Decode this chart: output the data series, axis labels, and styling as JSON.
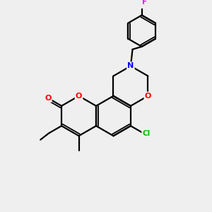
{
  "bg_color": "#efefef",
  "bond_color": "#000000",
  "atom_colors": {
    "O": "#ff0000",
    "N": "#0000ff",
    "Cl": "#00bb00",
    "F": "#ff00ff"
  },
  "lw": 1.6,
  "lw2": 1.3
}
